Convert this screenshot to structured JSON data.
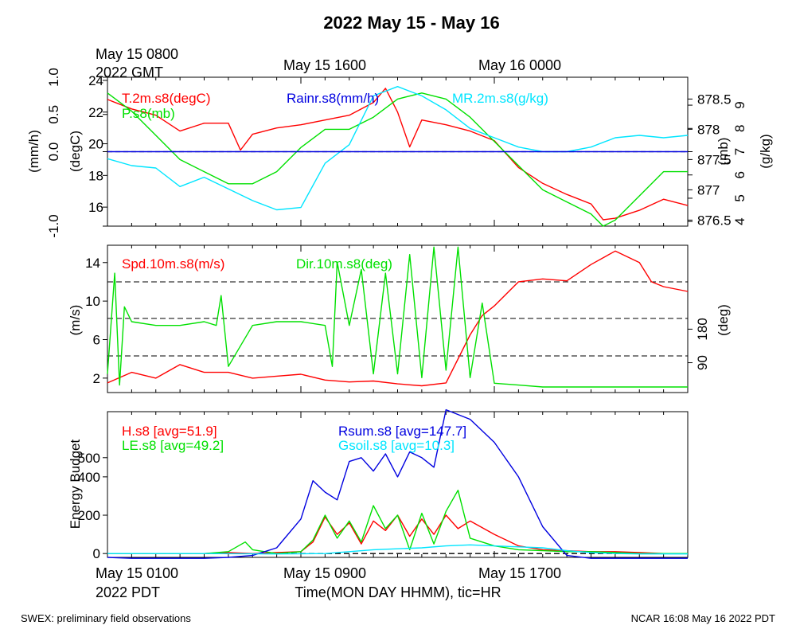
{
  "title": "2022 May 15 - May 16",
  "footer": {
    "left": "SWEX: preliminary field observations",
    "right": "NCAR 16:08 May 16 2022 PDT"
  },
  "top_axis": {
    "first_label_line1": "May 15 0800",
    "first_label_line2": "2022 GMT",
    "labels": [
      "May 15 1600",
      "May 16 0000"
    ]
  },
  "bottom_axis": {
    "first_label_line1": "May 15 0100",
    "first_label_line2": "2022 PDT",
    "labels": [
      "May 15 0900",
      "May 15 1700"
    ],
    "xlabel": "Time(MON DAY HHMM), tic=HR"
  },
  "colors": {
    "red": "#ff0000",
    "green": "#00e000",
    "blue": "#0000e0",
    "cyan": "#00e5ff",
    "black": "#000000"
  },
  "chart_data": [
    {
      "type": "line",
      "name": "panel-1",
      "x_unit": "hours since May 15 0100 PDT",
      "xlim": [
        0,
        24
      ],
      "axes": {
        "rain": {
          "label": "(mm/h)",
          "ylim": [
            -1.0,
            1.0
          ],
          "ticks": [
            "1.0",
            "0.5",
            "0.0",
            "-1.0"
          ],
          "tick_values": [
            1.0,
            0.5,
            0.0,
            -1.0
          ]
        },
        "temp": {
          "label": "(degC)",
          "ylim": [
            14.8,
            24.2
          ],
          "ticks": [
            "24",
            "22",
            "20",
            "18",
            "16"
          ],
          "tick_values": [
            24,
            22,
            20,
            18,
            16
          ]
        },
        "pres": {
          "label": "(mb)",
          "ylim": [
            876.4,
            878.86
          ],
          "ticks": [
            "878.5",
            "878",
            "877.5",
            "877",
            "876.5"
          ],
          "tick_values": [
            878.5,
            878.0,
            877.5,
            877.0,
            876.5
          ]
        },
        "mr": {
          "label": "(g/kg)",
          "ylim": [
            3.8,
            10.2
          ],
          "ticks": [
            "9",
            "8",
            "7",
            "6",
            "5",
            "4"
          ],
          "tick_values": [
            9,
            8,
            7,
            6,
            5,
            4
          ]
        }
      },
      "series": [
        {
          "name": "T.2m.s8(degC)",
          "color": "#ff0000",
          "axis": "temp",
          "x": [
            0,
            1,
            2,
            3,
            4,
            5,
            5.5,
            6,
            7,
            8,
            9,
            10,
            11,
            11.5,
            12,
            12.5,
            13,
            14,
            15,
            16,
            17,
            18,
            19,
            20,
            20.5,
            21,
            22,
            23,
            24
          ],
          "y": [
            22.8,
            22.2,
            21.8,
            20.8,
            21.3,
            21.3,
            19.6,
            20.6,
            21.0,
            21.2,
            21.5,
            21.8,
            22.6,
            23.5,
            22.0,
            19.8,
            21.5,
            21.2,
            20.8,
            20.2,
            18.5,
            17.5,
            16.8,
            16.2,
            15.2,
            15.3,
            15.8,
            16.5,
            16.1
          ]
        },
        {
          "name": "P.s8(mb)",
          "color": "#00e000",
          "axis": "pres",
          "x": [
            0,
            1,
            2,
            3,
            4,
            5,
            6,
            7,
            8,
            9,
            10,
            11,
            12,
            13,
            14,
            15,
            16,
            17,
            18,
            19,
            20,
            20.5,
            21,
            22,
            23,
            24
          ],
          "y": [
            878.6,
            878.3,
            877.9,
            877.5,
            877.3,
            877.1,
            877.1,
            877.3,
            877.7,
            878.0,
            878.0,
            878.2,
            878.5,
            878.6,
            878.5,
            878.2,
            877.8,
            877.4,
            877.0,
            876.8,
            876.6,
            876.4,
            876.5,
            876.9,
            877.3,
            877.3
          ]
        },
        {
          "name": "MR.2m.s8(g/kg)",
          "color": "#00e5ff",
          "axis": "mr",
          "x": [
            0,
            1,
            2,
            3,
            4,
            5,
            6,
            7,
            8,
            9,
            10,
            11,
            12,
            13,
            14,
            15,
            16,
            17,
            18,
            19,
            20,
            21,
            22,
            23,
            24
          ],
          "y": [
            6.7,
            6.4,
            6.3,
            5.5,
            5.9,
            5.4,
            4.9,
            4.5,
            4.6,
            6.5,
            7.3,
            9.4,
            9.8,
            9.4,
            8.8,
            8.0,
            7.6,
            7.2,
            7.0,
            7.0,
            7.2,
            7.6,
            7.7,
            7.6,
            7.7
          ]
        },
        {
          "name": "Rainr.s8(mm/h)",
          "color": "#0000e0",
          "axis": "rain",
          "x": [
            0,
            24
          ],
          "y": [
            0,
            0
          ]
        }
      ]
    },
    {
      "type": "line",
      "name": "panel-2",
      "x_unit": "hours since May 15 0100 PDT",
      "xlim": [
        0,
        24
      ],
      "axes": {
        "speed": {
          "label": "(m/s)",
          "ylim": [
            0.5,
            15.8
          ],
          "ticks": [
            "14",
            "10",
            "6",
            "2"
          ],
          "tick_values": [
            14,
            10,
            6,
            2
          ]
        },
        "dir": {
          "label": "(deg)",
          "ylim": [
            10,
            405
          ],
          "ticks": [
            "180",
            "90"
          ],
          "tick_values": [
            180,
            90
          ]
        }
      },
      "dashed_lines": [
        12,
        8.2,
        4.3
      ],
      "series": [
        {
          "name": "Spd.10m.s8(m/s)",
          "color": "#ff0000",
          "axis": "speed",
          "x": [
            0,
            1,
            2,
            3,
            4,
            5,
            6,
            7,
            8,
            9,
            10,
            11,
            12,
            13,
            14,
            15,
            15.5,
            16,
            17,
            18,
            19,
            20,
            21,
            22,
            22.5,
            23,
            24
          ],
          "y": [
            1.5,
            2.6,
            2.0,
            3.4,
            2.6,
            2.6,
            2.0,
            2.2,
            2.4,
            1.8,
            1.6,
            1.7,
            1.4,
            1.2,
            1.5,
            6.5,
            8.5,
            9.5,
            12.0,
            12.3,
            12.1,
            13.8,
            15.2,
            14.0,
            12.0,
            11.5,
            11.0
          ]
        },
        {
          "name": "Dir.10m.s8(deg)",
          "color": "#00e000",
          "axis": "dir",
          "x": [
            0,
            0.3,
            0.5,
            0.7,
            1,
            2,
            3,
            4,
            4.5,
            4.7,
            5,
            6,
            7,
            8,
            9,
            9.3,
            9.5,
            10,
            10.5,
            11,
            11.5,
            12,
            12.5,
            13,
            13.5,
            14,
            14.5,
            15,
            15.5,
            16,
            17,
            18,
            19,
            20,
            21,
            22,
            23,
            24
          ],
          "y": [
            60,
            330,
            30,
            240,
            200,
            190,
            190,
            200,
            190,
            270,
            80,
            190,
            200,
            200,
            190,
            80,
            360,
            190,
            340,
            60,
            330,
            60,
            380,
            50,
            400,
            70,
            400,
            50,
            250,
            35,
            30,
            25,
            25,
            25,
            25,
            25,
            25,
            25
          ]
        }
      ]
    },
    {
      "type": "line",
      "name": "panel-3",
      "x_unit": "hours since May 15 0100 PDT",
      "xlim": [
        0,
        24
      ],
      "ylabel": "Energy Budget",
      "ylim": [
        -20,
        740
      ],
      "ticks": [
        "500",
        "400",
        "200",
        "0"
      ],
      "tick_values": [
        500,
        400,
        200,
        0
      ],
      "dashed_lines": [
        0
      ],
      "series": [
        {
          "name": "H.s8 [avg=51.9]",
          "color": "#ff0000",
          "x": [
            0,
            2,
            4,
            5,
            6,
            7,
            8,
            8.5,
            9,
            9.5,
            10,
            10.5,
            11,
            11.5,
            12,
            12.5,
            13,
            13.5,
            14,
            14.5,
            15,
            16,
            17,
            18,
            19,
            20,
            21,
            22,
            23,
            24
          ],
          "y": [
            0,
            0,
            0,
            5,
            0,
            5,
            10,
            60,
            190,
            100,
            160,
            50,
            170,
            120,
            200,
            90,
            180,
            100,
            200,
            130,
            170,
            100,
            40,
            20,
            15,
            10,
            10,
            5,
            0,
            0
          ]
        },
        {
          "name": "LE.s8 [avg=49.2]",
          "color": "#00e000",
          "x": [
            0,
            2,
            4,
            5,
            5.7,
            6,
            7,
            8,
            8.5,
            9,
            9.5,
            10,
            10.5,
            11,
            11.5,
            12,
            12.5,
            13,
            13.5,
            14,
            14.5,
            15,
            16,
            17,
            18,
            19,
            20,
            21,
            22,
            23,
            24
          ],
          "y": [
            0,
            0,
            0,
            10,
            60,
            20,
            0,
            10,
            70,
            200,
            80,
            170,
            60,
            250,
            130,
            200,
            20,
            210,
            50,
            220,
            330,
            80,
            40,
            20,
            15,
            10,
            10,
            5,
            0,
            0,
            0
          ]
        },
        {
          "name": "Rsum.s8 [avg=147.7]",
          "color": "#0000e0",
          "x": [
            0,
            1,
            2,
            3,
            4,
            5,
            6,
            7,
            8,
            8.5,
            9,
            9.5,
            10,
            10.5,
            11,
            11.5,
            12,
            12.5,
            13,
            13.5,
            14,
            15,
            16,
            17,
            18,
            19,
            20,
            21,
            22,
            23,
            24
          ],
          "y": [
            -20,
            -25,
            -25,
            -25,
            -25,
            -20,
            -10,
            30,
            180,
            380,
            320,
            280,
            480,
            500,
            430,
            520,
            400,
            530,
            500,
            450,
            750,
            700,
            580,
            400,
            140,
            -10,
            -25,
            -25,
            -25,
            -25,
            -25
          ]
        },
        {
          "name": "Gsoil.s8 [avg=10.3]",
          "color": "#00e5ff",
          "x": [
            0,
            4,
            7,
            9,
            10,
            11,
            12,
            13,
            14,
            15,
            16,
            17,
            18,
            19,
            20,
            21,
            22,
            23,
            24
          ],
          "y": [
            0,
            0,
            -2,
            0,
            10,
            20,
            25,
            30,
            40,
            45,
            40,
            35,
            30,
            15,
            5,
            0,
            -2,
            -2,
            -2
          ]
        }
      ]
    }
  ]
}
